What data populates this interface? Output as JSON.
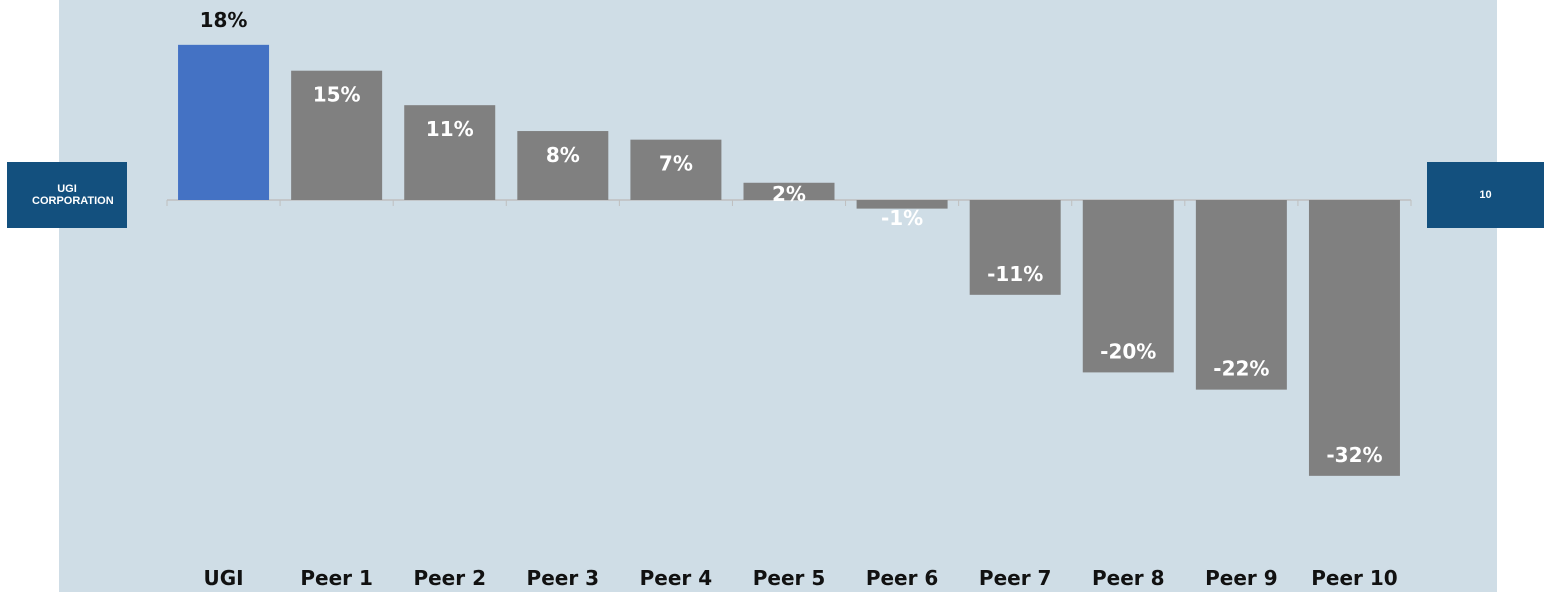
{
  "header": {
    "company_tab": "UGI CORPORATION",
    "page_number": "10"
  },
  "colors": {
    "background": "#cfdde6",
    "highlight_bar": "#4472c4",
    "peer_bar": "#808080",
    "tab": "#13507e",
    "axis": "#bfbfbf"
  },
  "chart_data": {
    "type": "bar",
    "categories": [
      "UGI",
      "Peer 1",
      "Peer 2",
      "Peer 3",
      "Peer 4",
      "Peer 5",
      "Peer 6",
      "Peer 7",
      "Peer 8",
      "Peer 9",
      "Peer 10"
    ],
    "values": [
      18,
      15,
      11,
      8,
      7,
      2,
      -1,
      -11,
      -20,
      -22,
      -32
    ],
    "data_labels": [
      "18%",
      "15%",
      "11%",
      "8%",
      "7%",
      "2%",
      "-1%",
      "-11%",
      "-20%",
      "-22%",
      "-32%"
    ],
    "value_unit": "%",
    "highlight_category": "UGI",
    "title": "",
    "xlabel": "",
    "ylabel": "",
    "grid": false,
    "legend": "none"
  }
}
